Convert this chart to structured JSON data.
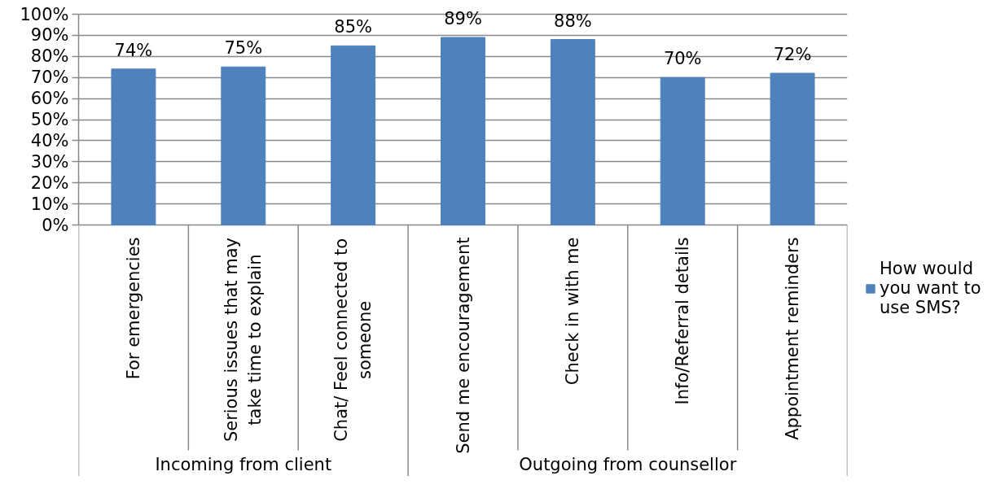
{
  "chart_data": {
    "type": "bar",
    "categories": [
      "For emergencies",
      "Serious issues that may take time to explain",
      "Chat/ Feel connected to someone",
      "Send me encouragement",
      "Check in with me",
      "Info/Referral details",
      "Appointment reminders"
    ],
    "series": [
      {
        "name": "How would you want to use SMS?",
        "color": "#4f81bd",
        "values": [
          74,
          75,
          85,
          89,
          88,
          70,
          72
        ],
        "value_labels": [
          "74%",
          "75%",
          "85%",
          "89%",
          "88%",
          "70%",
          "72%"
        ]
      }
    ],
    "ylim": [
      0,
      100
    ],
    "yticks": [
      {
        "value": 0,
        "label": "0%"
      },
      {
        "value": 10,
        "label": "10%"
      },
      {
        "value": 20,
        "label": "20%"
      },
      {
        "value": 30,
        "label": "30%"
      },
      {
        "value": 40,
        "label": "40%"
      },
      {
        "value": 50,
        "label": "50%"
      },
      {
        "value": 60,
        "label": "60%"
      },
      {
        "value": 70,
        "label": "70%"
      },
      {
        "value": 80,
        "label": "80%"
      },
      {
        "value": 90,
        "label": "90%"
      },
      {
        "value": 100,
        "label": "100%"
      }
    ],
    "grid": "y",
    "legend": "right",
    "annotations": [
      "Incoming from client",
      "Outgoing from counsellor"
    ]
  }
}
